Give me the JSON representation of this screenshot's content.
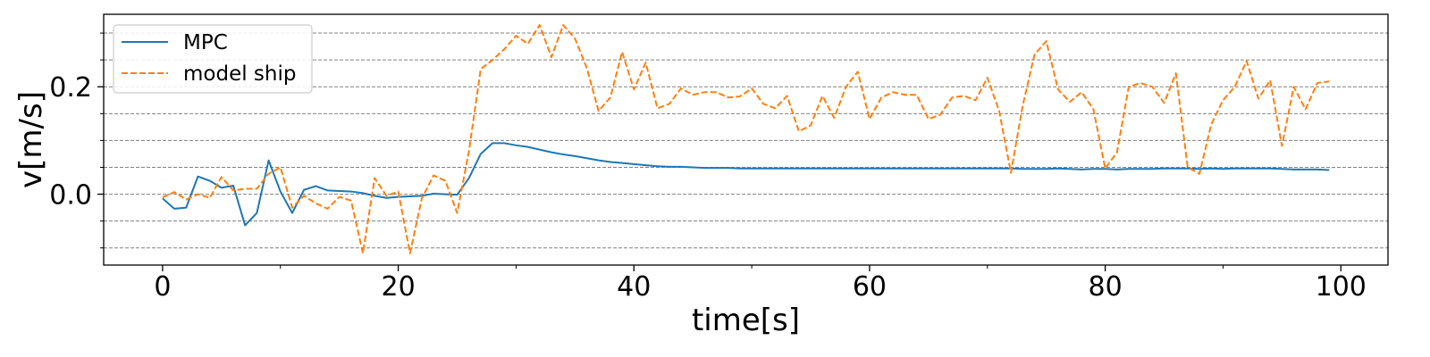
{
  "chart_data": {
    "type": "line",
    "title": "",
    "xlabel": "time[s]",
    "ylabel": "v[m/s]",
    "xlim": [
      -5,
      104
    ],
    "ylim": [
      -0.132,
      0.335
    ],
    "xticks": [
      0,
      20,
      40,
      60,
      80,
      100
    ],
    "xtick_labels": [
      "0",
      "20",
      "40",
      "60",
      "80",
      "100"
    ],
    "yticks": [
      0.0,
      0.2
    ],
    "ytick_labels": [
      "0.0",
      "0.2"
    ],
    "grid_y": [
      -0.1,
      -0.05,
      0.0,
      0.05,
      0.1,
      0.15,
      0.2,
      0.25,
      0.3
    ],
    "minor_xticks": [
      10,
      30,
      50,
      70,
      90
    ],
    "minor_yticks": [
      -0.1,
      -0.05,
      0.05,
      0.1,
      0.15,
      0.25,
      0.3
    ],
    "legend_position": "top-left",
    "series": [
      {
        "name": "MPC",
        "color": "#1f77b4",
        "dash": "solid",
        "x": [
          0,
          1,
          2,
          3,
          4,
          5,
          6,
          7,
          8,
          9,
          10,
          11,
          12,
          13,
          14,
          15,
          16,
          17,
          18,
          19,
          20,
          21,
          22,
          23,
          24,
          25,
          26,
          27,
          28,
          29,
          30,
          31,
          32,
          33,
          34,
          35,
          36,
          37,
          38,
          39,
          40,
          41,
          42,
          43,
          44,
          45,
          46,
          47,
          48,
          49,
          50,
          51,
          52,
          53,
          54,
          55,
          56,
          57,
          58,
          59,
          60,
          61,
          62,
          63,
          64,
          65,
          66,
          67,
          68,
          69,
          70,
          71,
          72,
          73,
          74,
          75,
          76,
          77,
          78,
          79,
          80,
          81,
          82,
          83,
          84,
          85,
          86,
          87,
          88,
          89,
          90,
          91,
          92,
          93,
          94,
          95,
          96,
          97,
          98,
          99
        ],
        "values": [
          -0.008,
          -0.027,
          -0.025,
          0.033,
          0.025,
          0.012,
          0.016,
          -0.058,
          -0.035,
          0.063,
          0.005,
          -0.035,
          0.008,
          0.015,
          0.007,
          0.006,
          0.005,
          0.002,
          -0.003,
          -0.007,
          -0.005,
          -0.004,
          -0.003,
          0.001,
          0.0,
          -0.001,
          0.03,
          0.075,
          0.095,
          0.095,
          0.091,
          0.088,
          0.083,
          0.078,
          0.074,
          0.071,
          0.067,
          0.063,
          0.06,
          0.058,
          0.056,
          0.054,
          0.052,
          0.051,
          0.051,
          0.05,
          0.049,
          0.049,
          0.049,
          0.048,
          0.048,
          0.048,
          0.048,
          0.048,
          0.048,
          0.048,
          0.048,
          0.048,
          0.048,
          0.048,
          0.048,
          0.048,
          0.048,
          0.048,
          0.048,
          0.048,
          0.048,
          0.048,
          0.048,
          0.048,
          0.048,
          0.048,
          0.048,
          0.047,
          0.047,
          0.047,
          0.048,
          0.047,
          0.046,
          0.047,
          0.047,
          0.046,
          0.047,
          0.047,
          0.047,
          0.048,
          0.048,
          0.048,
          0.047,
          0.048,
          0.047,
          0.048,
          0.048,
          0.048,
          0.048,
          0.047,
          0.046,
          0.046,
          0.046,
          0.045
        ]
      },
      {
        "name": "model ship",
        "color": "#ff7f0e",
        "dash": "dashed",
        "x": [
          0,
          1,
          2,
          3,
          4,
          5,
          6,
          7,
          8,
          9,
          10,
          11,
          12,
          13,
          14,
          15,
          16,
          17,
          18,
          19,
          20,
          21,
          22,
          23,
          24,
          25,
          26,
          27,
          28,
          29,
          30,
          31,
          32,
          33,
          34,
          35,
          36,
          37,
          38,
          39,
          40,
          41,
          42,
          43,
          44,
          45,
          46,
          47,
          48,
          49,
          50,
          51,
          52,
          53,
          54,
          55,
          56,
          57,
          58,
          59,
          60,
          61,
          62,
          63,
          64,
          65,
          66,
          67,
          68,
          69,
          70,
          71,
          72,
          73,
          74,
          75,
          76,
          77,
          78,
          79,
          80,
          81,
          82,
          83,
          84,
          85,
          86,
          87,
          88,
          89,
          90,
          91,
          92,
          93,
          94,
          95,
          96,
          97,
          98,
          99
        ],
        "values": [
          -0.006,
          0.004,
          -0.01,
          0.0,
          -0.007,
          0.032,
          0.007,
          0.01,
          0.01,
          0.038,
          0.05,
          -0.025,
          -0.003,
          -0.017,
          -0.027,
          -0.005,
          -0.012,
          -0.11,
          0.03,
          -0.003,
          0.005,
          -0.11,
          -0.008,
          0.035,
          0.025,
          -0.035,
          0.08,
          0.233,
          0.25,
          0.27,
          0.295,
          0.28,
          0.315,
          0.255,
          0.315,
          0.29,
          0.235,
          0.155,
          0.18,
          0.265,
          0.195,
          0.245,
          0.16,
          0.168,
          0.197,
          0.185,
          0.19,
          0.19,
          0.18,
          0.182,
          0.197,
          0.168,
          0.16,
          0.183,
          0.117,
          0.128,
          0.183,
          0.142,
          0.2,
          0.228,
          0.14,
          0.18,
          0.19,
          0.185,
          0.185,
          0.14,
          0.148,
          0.18,
          0.183,
          0.175,
          0.217,
          0.155,
          0.04,
          0.165,
          0.26,
          0.285,
          0.195,
          0.172,
          0.19,
          0.158,
          0.048,
          0.078,
          0.2,
          0.207,
          0.2,
          0.17,
          0.225,
          0.05,
          0.038,
          0.13,
          0.175,
          0.2,
          0.248,
          0.178,
          0.212,
          0.09,
          0.2,
          0.158,
          0.207,
          0.21
        ]
      }
    ]
  }
}
